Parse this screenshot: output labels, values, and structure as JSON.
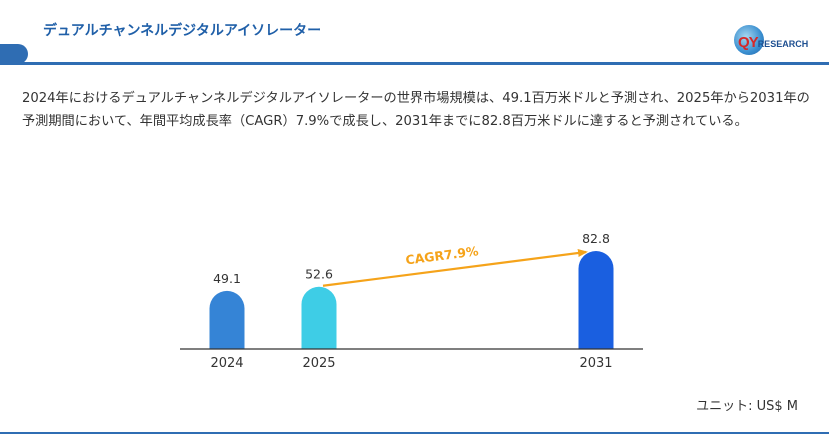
{
  "header": {
    "title": "デュアルチャンネルデジタルアイソレーター",
    "logo_text": "QYRESEARCH",
    "logo_initials": "QY",
    "logo_remainder": "RESEARCH"
  },
  "summary": "2024年におけるデュアルチャンネルデジタルアイソレーターの世界市場規模は、49.1百万米ドルと予測され、2025年から2031年の予測期間において、年間平均成長率（CAGR）7.9%で成長し、2031年までに82.8百万米ドルに達すると予測されている。",
  "unit_label": "ユニット: US$ M",
  "chart_data": {
    "type": "bar",
    "categories": [
      "2024",
      "2025",
      "2031"
    ],
    "values": [
      49.1,
      52.6,
      82.8
    ],
    "data_labels": [
      "49.1",
      "52.6",
      "82.8"
    ],
    "colors": [
      "#3584d6",
      "#3ecde6",
      "#1a5fe0"
    ],
    "annotation": {
      "text": "CAGR7.9%",
      "from_category": "2025",
      "to_category": "2031",
      "color": "#f5a31a"
    },
    "title": "",
    "xlabel": "",
    "ylabel": "",
    "unit": "US$ M",
    "grid": false,
    "legend": "none"
  }
}
